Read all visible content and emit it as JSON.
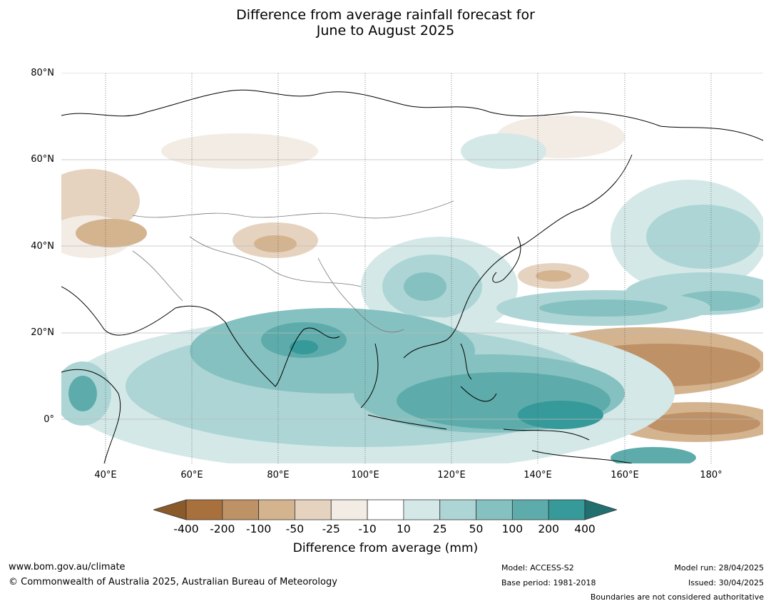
{
  "title": {
    "line1": "Difference from average rainfall forecast for",
    "line2": "June to August 2025"
  },
  "map": {
    "lat_labels": [
      "80°N",
      "60°N",
      "40°N",
      "20°N",
      "0°"
    ],
    "lon_labels": [
      "40°E",
      "60°E",
      "80°E",
      "100°E",
      "120°E",
      "140°E",
      "160°E",
      "180°"
    ],
    "colors": {
      "-400": "#a8703c",
      "-200": "#bf9166",
      "-100": "#d4b38f",
      "-50": "#e5d3c0",
      "-25": "#f3ece5",
      "0": "#ffffff",
      "10": "#d4e8e8",
      "25": "#add5d5",
      "50": "#85c1c0",
      "100": "#5dacab",
      "200": "#36999a",
      "400": "#206b6d"
    }
  },
  "colorbar": {
    "labels": [
      "-400",
      "-200",
      "-100",
      "-50",
      "-25",
      "-10",
      "10",
      "25",
      "50",
      "100",
      "200",
      "400"
    ],
    "colors": [
      "#a8703c",
      "#bf9166",
      "#d4b38f",
      "#e5d3c0",
      "#f3ece5",
      "#ffffff",
      "#d4e8e8",
      "#add5d5",
      "#85c1c0",
      "#5dacab",
      "#36999a"
    ],
    "low_extend_color": "#8a5a2b",
    "high_extend_color": "#226f70",
    "title": "Difference from average (mm)"
  },
  "footer": {
    "website": "www.bom.gov.au/climate",
    "copyright": "© Commonwealth of Australia 2025, Australian Bureau of Meteorology",
    "model": "Model: ACCESS-S2",
    "base_period": "Base period: 1981-2018",
    "model_run": "Model run: 28/04/2025",
    "issued": "Issued: 30/04/2025",
    "disclaimer": "Boundaries are not considered authoritative"
  }
}
